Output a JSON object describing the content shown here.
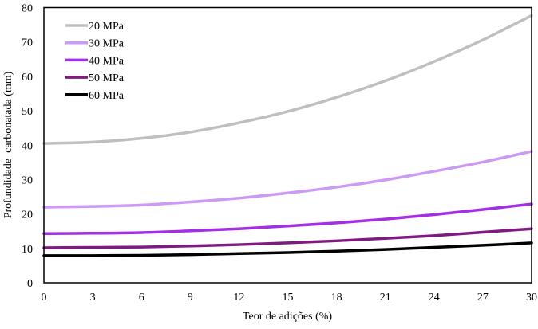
{
  "chart_data": {
    "type": "line",
    "title": "",
    "xlabel": "Teor de adições (%)",
    "ylabel": "Profundidade  carbonatada (mm)",
    "xlim": [
      0,
      30
    ],
    "ylim": [
      0,
      80
    ],
    "xticks": [
      0,
      3,
      6,
      9,
      12,
      15,
      18,
      21,
      24,
      27,
      30
    ],
    "yticks": [
      0,
      10,
      20,
      30,
      40,
      50,
      60,
      70,
      80
    ],
    "grid": false,
    "legend_position": "top-left",
    "x": [
      0,
      3,
      6,
      9,
      12,
      15,
      18,
      21,
      24,
      27,
      30
    ],
    "series": [
      {
        "name": "20 MPa",
        "color": "#bfbfbf",
        "values": [
          40.5,
          40.9,
          42.0,
          43.8,
          46.5,
          49.8,
          53.9,
          58.7,
          64.3,
          70.6,
          77.7
        ]
      },
      {
        "name": "30 MPa",
        "color": "#cc99f5",
        "values": [
          22.0,
          22.2,
          22.6,
          23.5,
          24.6,
          26.1,
          27.8,
          29.9,
          32.4,
          35.1,
          38.2
        ]
      },
      {
        "name": "40 MPa",
        "color": "#a32ee6",
        "values": [
          14.3,
          14.4,
          14.6,
          15.1,
          15.7,
          16.5,
          17.4,
          18.5,
          19.8,
          21.3,
          22.9
        ]
      },
      {
        "name": "50 MPa",
        "color": "#7f1a80",
        "values": [
          10.2,
          10.3,
          10.4,
          10.7,
          11.1,
          11.6,
          12.2,
          12.9,
          13.7,
          14.7,
          15.7
        ]
      },
      {
        "name": "60 MPa",
        "color": "#000000",
        "values": [
          7.9,
          7.9,
          8.0,
          8.2,
          8.5,
          8.8,
          9.2,
          9.7,
          10.3,
          10.9,
          11.6
        ]
      }
    ]
  }
}
